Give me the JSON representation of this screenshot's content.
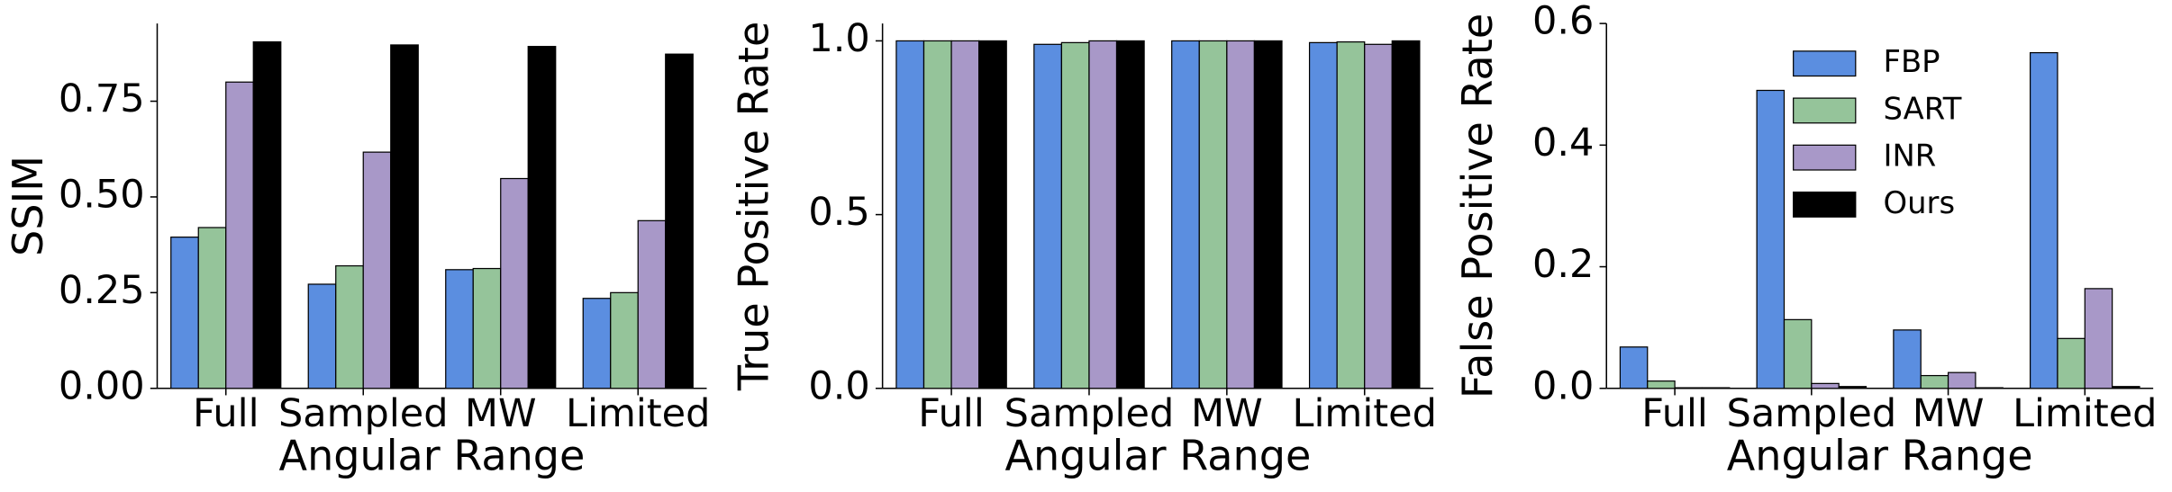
{
  "chart_data": [
    {
      "type": "bar",
      "ylabel": "SSIM",
      "xlabel": "Angular Range",
      "categories": [
        "Full",
        "Sampled",
        "MW",
        "Limited"
      ],
      "series": [
        {
          "color": "#5b8ee0",
          "values": [
            0.395,
            0.272,
            0.31,
            0.235
          ]
        },
        {
          "color": "#95c49a",
          "values": [
            0.42,
            0.32,
            0.313,
            0.25
          ]
        },
        {
          "color": "#a898c8",
          "values": [
            0.8,
            0.617,
            0.548,
            0.438
          ]
        },
        {
          "color": "#000000",
          "values": [
            0.905,
            0.897,
            0.893,
            0.873
          ]
        }
      ],
      "ylim": [
        0,
        0.953
      ],
      "yticks": [
        {
          "value": 0,
          "label": "0.00"
        },
        {
          "value": 0.25,
          "label": "0.25"
        },
        {
          "value": 0.5,
          "label": "0.50"
        },
        {
          "value": 0.75,
          "label": "0.75"
        }
      ]
    },
    {
      "type": "bar",
      "ylabel": "True Positive Rate",
      "xlabel": "Angular Range",
      "categories": [
        "Full",
        "Sampled",
        "MW",
        "Limited"
      ],
      "series": [
        {
          "color": "#5b8ee0",
          "values": [
            1.0,
            0.99,
            1.0,
            0.995
          ]
        },
        {
          "color": "#95c49a",
          "values": [
            1.0,
            0.995,
            1.0,
            0.997
          ]
        },
        {
          "color": "#a898c8",
          "values": [
            1.0,
            1.0,
            1.0,
            0.99
          ]
        },
        {
          "color": "#000000",
          "values": [
            1.0,
            1.0,
            1.0,
            1.0
          ]
        }
      ],
      "ylim": [
        0,
        1.05
      ],
      "yticks": [
        {
          "value": 0,
          "label": "0.0"
        },
        {
          "value": 0.5,
          "label": "0.5"
        },
        {
          "value": 1,
          "label": "1.0"
        }
      ]
    },
    {
      "type": "bar",
      "ylabel": "False Positive Rate",
      "xlabel": "Angular Range",
      "categories": [
        "Full",
        "Sampled",
        "MW",
        "Limited"
      ],
      "series": [
        {
          "name": "FBP",
          "color": "#5b8ee0",
          "values": [
            0.068,
            0.49,
            0.096,
            0.552
          ]
        },
        {
          "name": "SART",
          "color": "#95c49a",
          "values": [
            0.012,
            0.113,
            0.021,
            0.082
          ]
        },
        {
          "name": "INR",
          "color": "#a898c8",
          "values": [
            0.001,
            0.008,
            0.026,
            0.164
          ]
        },
        {
          "name": "Ours",
          "color": "#000000",
          "values": [
            0.001,
            0.003,
            0.001,
            0.003
          ]
        }
      ],
      "ylim": [
        0,
        0.6
      ],
      "yticks": [
        {
          "value": 0,
          "label": "0.0"
        },
        {
          "value": 0.2,
          "label": "0.2"
        },
        {
          "value": 0.4,
          "label": "0.4"
        },
        {
          "value": 0.6,
          "label": "0.6"
        }
      ],
      "legend": "upper right"
    }
  ]
}
